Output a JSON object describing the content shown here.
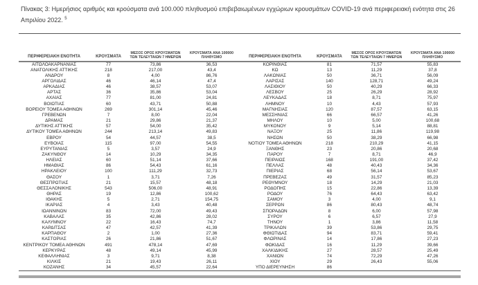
{
  "title": {
    "text": "Πίνακας 3:  Ημερήσιος αριθμός και κρούσματα ανά 100.000 πληθυσμού επιβεβαιωμένων εγχώριων κρουσμάτων COVID-19 ανά περιφερειακή ενότητα στις 26 Απριλίου 2022. ",
    "footnote_marker": "5"
  },
  "table": {
    "headers": {
      "region": "ΠΕΡΙΦΕΡΕΙΑΚΗ ΕΝΟΤΗΤΑ",
      "cases": "ΚΡΟΥΣΜΑΤΑ",
      "avg7_line1": "ΜΕΣΟΣ ΟΡΟΣ ΚΡΟΥΣΜΑΤΩΝ",
      "avg7_line2": "ΤΩΝ ΤΕΛΕΥΤΑΙΩΝ 7 ΗΜΕΡΩΝ",
      "per100k_line1": "ΚΡΟΥΣΜΑΤΑ ΑΝΑ 100000",
      "per100k_line2": "ΠΛΗΘΥΣΜΟ"
    },
    "left_rows": [
      [
        "ΑΙΤΩΛΟΑΚΑΡΝΑΝΙΑΣ",
        "77",
        "73,86",
        "36,53"
      ],
      [
        "ΑΝΑΤΟΛΙΚΗΣ ΑΤΤΙΚΗΣ",
        "218",
        "217,00",
        "43,4"
      ],
      [
        "ΑΝΔΡΟΥ",
        "8",
        "4,00",
        "86,76"
      ],
      [
        "ΑΡΓΟΛΙΔΑΣ",
        "46",
        "46,14",
        "47,4"
      ],
      [
        "ΑΡΚΑΔΙΑΣ",
        "46",
        "38,57",
        "53,07"
      ],
      [
        "ΑΡΤΑΣ",
        "36",
        "35,86",
        "53,04"
      ],
      [
        "ΑΧΑΪΑΣ",
        "77",
        "81,00",
        "24,81"
      ],
      [
        "ΒΟΙΩΤΙΑΣ",
        "60",
        "43,71",
        "50,88"
      ],
      [
        "ΒΟΡΕΙΟΥ ΤΟΜΕΑ ΑΘΗΝΩΝ",
        "269",
        "301,14",
        "45,46"
      ],
      [
        "ΓΡΕΒΕΝΩΝ",
        "7",
        "8,00",
        "22,04"
      ],
      [
        "ΔΡΑΜΑΣ",
        "21",
        "29,86",
        "21,37"
      ],
      [
        "ΔΥΤΙΚΗΣ ΑΤΤΙΚΗΣ",
        "57",
        "54,00",
        "35,42"
      ],
      [
        "ΔΥΤΙΚΟΥ ΤΟΜΕΑ ΑΘΗΝΩΝ",
        "244",
        "213,14",
        "49,83"
      ],
      [
        "ΕΒΡΟΥ",
        "54",
        "44,57",
        "38,5"
      ],
      [
        "ΕΥΒΟΙΑΣ",
        "115",
        "97,00",
        "54,55"
      ],
      [
        "ΕΥΡΥΤΑΝΙΑΣ",
        "5",
        "3,57",
        "24,9"
      ],
      [
        "ΖΑΚΥΝΘΟΥ",
        "14",
        "10,29",
        "34,35"
      ],
      [
        "ΗΛΕΙΑΣ",
        "60",
        "51,14",
        "37,66"
      ],
      [
        "ΗΜΑΘΙΑΣ",
        "86",
        "54,43",
        "61,16"
      ],
      [
        "ΗΡΑΚΛΕΙΟΥ",
        "100",
        "111,29",
        "32,73"
      ],
      [
        "ΘΑΣΟΥ",
        "1",
        "3,71",
        "7,26"
      ],
      [
        "ΘΕΣΠΡΩΤΙΑΣ",
        "21",
        "15,57",
        "48,18"
      ],
      [
        "ΘΕΣΣΑΛΟΝΙΚΗΣ",
        "543",
        "506,00",
        "48,91"
      ],
      [
        "ΘΗΡΑΣ",
        "19",
        "12,86",
        "100,62"
      ],
      [
        "ΙΘΑΚΗΣ",
        "5",
        "2,71",
        "154,75"
      ],
      [
        "ΙΚΑΡΙΑΣ",
        "4",
        "3,43",
        "40,48"
      ],
      [
        "ΙΩΑΝΝΙΝΩΝ",
        "83",
        "72,00",
        "49,43"
      ],
      [
        "ΚΑΒΑΛΑΣ",
        "35",
        "42,86",
        "28,02"
      ],
      [
        "ΚΑΛΥΜΝΟΥ",
        "22",
        "16,43",
        "74,7"
      ],
      [
        "ΚΑΡΔΙΤΣΑΣ",
        "47",
        "42,57",
        "41,39"
      ],
      [
        "ΚΑΡΠΑΘΟΥ",
        "2",
        "1,00",
        "27,36"
      ],
      [
        "ΚΑΣΤΟΡΙΑΣ",
        "26",
        "21,86",
        "51,67"
      ],
      [
        "ΚΕΝΤΡΙΚΟΥ ΤΟΜΕΑ ΑΘΗΝΩΝ",
        "491",
        "478,14",
        "47,69"
      ],
      [
        "ΚΕΡΚΥΡΑΣ",
        "48",
        "49,14",
        "45,99"
      ],
      [
        "ΚΕΦΑΛΛΗΝΙΑΣ",
        "3",
        "9,71",
        "8,38"
      ],
      [
        "ΚΙΛΚΙΣ",
        "21",
        "19,43",
        "26,11"
      ],
      [
        "ΚΟΖΑΝΗΣ",
        "34",
        "45,57",
        "22,64"
      ]
    ],
    "right_rows": [
      [
        "ΚΟΡΙΝΘΙΑΣ",
        "81",
        "71,57",
        "55,83"
      ],
      [
        "ΚΩ",
        "13",
        "11,29",
        "37,8"
      ],
      [
        "ΛΑΚΩΝΙΑΣ",
        "50",
        "36,71",
        "56,09"
      ],
      [
        "ΛΑΡΙΣΑΣ",
        "140",
        "128,71",
        "49,24"
      ],
      [
        "ΛΑΣΙΘΙΟΥ",
        "50",
        "40,29",
        "66,33"
      ],
      [
        "ΛΕΣΒΟΥ",
        "25",
        "26,29",
        "28,92"
      ],
      [
        "ΛΕΥΚΑΔΑΣ",
        "18",
        "8,71",
        "75,97"
      ],
      [
        "ΛΗΜΝΟΥ",
        "10",
        "4,43",
        "57,93"
      ],
      [
        "ΜΑΓΝΗΣΙΑΣ",
        "120",
        "87,57",
        "63,15"
      ],
      [
        "ΜΕΣΣΗΝΙΑΣ",
        "66",
        "66,57",
        "41,26"
      ],
      [
        "ΜΗΛΟΥ",
        "10",
        "5,00",
        "100,68"
      ],
      [
        "ΜΥΚΟΝΟΥ",
        "9",
        "5,14",
        "88,81"
      ],
      [
        "ΝΑΞΟΥ",
        "25",
        "11,86",
        "119,98"
      ],
      [
        "ΝΗΣΩΝ",
        "50",
        "38,29",
        "66,98"
      ],
      [
        "ΝΟΤΙΟΥ ΤΟΜΕΑ ΑΘΗΝΩΝ",
        "218",
        "210,29",
        "41,15"
      ],
      [
        "ΞΑΝΘΗΣ",
        "23",
        "20,86",
        "20,68"
      ],
      [
        "ΠΑΡΟΥ",
        "7",
        "8,71",
        "46,9"
      ],
      [
        "ΠΕΙΡΑΙΩΣ",
        "168",
        "191,00",
        "37,42"
      ],
      [
        "ΠΕΛΛΑΣ",
        "48",
        "40,43",
        "34,36"
      ],
      [
        "ΠΙΕΡΙΑΣ",
        "68",
        "56,14",
        "53,67"
      ],
      [
        "ΠΡΕΒΕΖΑΣ",
        "49",
        "31,57",
        "85,23"
      ],
      [
        "ΡΕΘΥΜΝΟΥ",
        "18",
        "14,29",
        "21,03"
      ],
      [
        "ΡΟΔΟΠΗΣ",
        "15",
        "22,86",
        "13,39"
      ],
      [
        "ΡΟΔΟΥ",
        "76",
        "64,43",
        "63,42"
      ],
      [
        "ΣΑΜΟΥ",
        "3",
        "4,00",
        "9,1"
      ],
      [
        "ΣΕΡΡΩΝ",
        "86",
        "80,43",
        "48,74"
      ],
      [
        "ΣΠΟΡΑΔΩΝ",
        "8",
        "6,00",
        "57,98"
      ],
      [
        "ΣΥΡΟΥ",
        "6",
        "6,57",
        "27,9"
      ],
      [
        "ΤΗΝΟΥ",
        "1",
        "3,86",
        "11,58"
      ],
      [
        "ΤΡΙΚΑΛΩΝ",
        "39",
        "53,86",
        "29,75"
      ],
      [
        "ΦΘΙΩΤΙΔΑΣ",
        "94",
        "83,71",
        "59,41"
      ],
      [
        "ΦΛΩΡΙΝΑΣ",
        "14",
        "17,86",
        "27,23"
      ],
      [
        "ΦΩΚΙΔΑΣ",
        "16",
        "11,29",
        "39,66"
      ],
      [
        "ΧΑΛΚΙΔΙΚΗΣ",
        "27",
        "28,57",
        "25,49"
      ],
      [
        "ΧΑΝΙΩΝ",
        "74",
        "72,29",
        "47,26"
      ],
      [
        "ΧΙΟΥ",
        "29",
        "26,43",
        "55,06"
      ],
      [
        "ΥΠΟ ΔΙΕΡΕΥΝΗΣΗ",
        "86",
        "",
        ""
      ]
    ]
  }
}
